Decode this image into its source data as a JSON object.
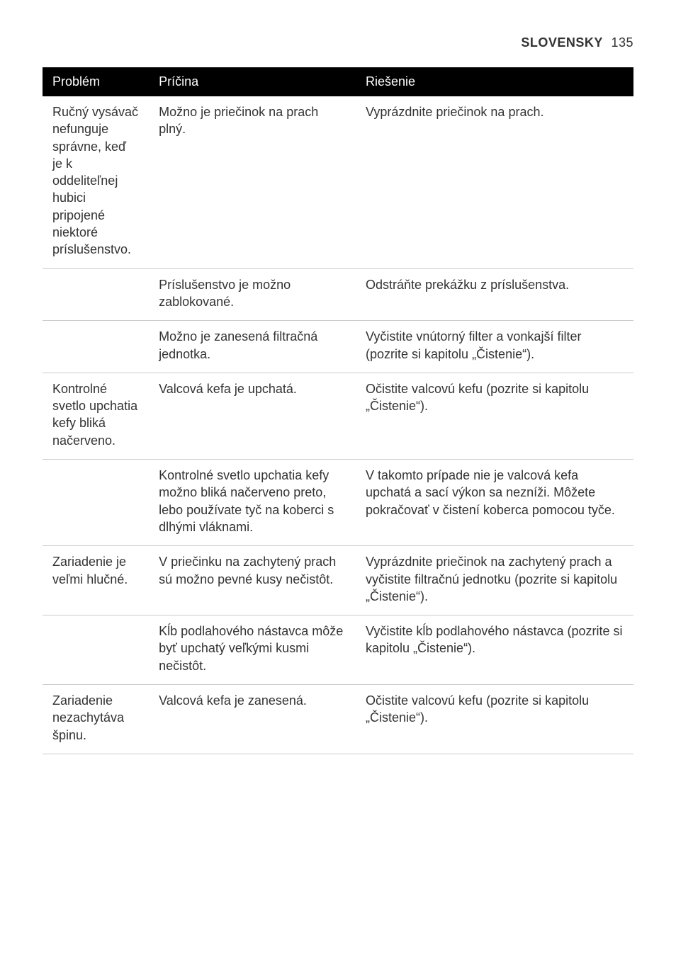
{
  "header": {
    "language": "SLOVENSKY",
    "page_number": "135"
  },
  "table": {
    "columns": [
      "Problém",
      "Príčina",
      "Riešenie"
    ],
    "rows": [
      {
        "problem": "Ručný vysávač nefunguje správne, keď je k oddeliteľnej hubici pripojené niektoré príslušenstvo.",
        "cause": "Možno je priečinok na prach plný.",
        "solution": "Vyprázdnite priečinok na prach."
      },
      {
        "problem": "",
        "cause": "Príslušenstvo je možno zablokované.",
        "solution": "Odstráňte prekážku z príslušenstva."
      },
      {
        "problem": "",
        "cause": "Možno je zanesená filtračná jednotka.",
        "solution": "Vyčistite vnútorný filter a vonkajší filter (pozrite si kapitolu „Čistenie“)."
      },
      {
        "problem": "Kontrolné svetlo upchatia kefy bliká načerveno.",
        "cause": "Valcová kefa je upchatá.",
        "solution": "Očistite valcovú kefu (pozrite si kapitolu „Čistenie“)."
      },
      {
        "problem": "",
        "cause": "Kontrolné svetlo upchatia kefy možno bliká načerveno preto, lebo používate tyč na koberci s dlhými vláknami.",
        "solution": "V takomto prípade nie je valcová kefa upchatá a sací výkon sa nezníži. Môžete pokračovať v čistení koberca pomocou tyče."
      },
      {
        "problem": "Zariadenie je veľmi hlučné.",
        "cause": "V priečinku na zachytený prach sú možno pevné kusy nečistôt.",
        "solution": "Vyprázdnite priečinok na zachytený prach a vyčistite filtračnú jednotku (pozrite si kapitolu „Čistenie“)."
      },
      {
        "problem": "",
        "cause": "Kĺb podlahového nástavca môže byť upchatý veľkými kusmi nečistôt.",
        "solution": "Vyčistite kĺb podlahového nástavca (pozrite si kapitolu „Čistenie“)."
      },
      {
        "problem": "Zariadenie nezachytáva špinu.",
        "cause": "Valcová kefa je zanesená.",
        "solution": "Očistite valcovú kefu (pozrite si kapitolu „Čistenie“)."
      }
    ]
  }
}
